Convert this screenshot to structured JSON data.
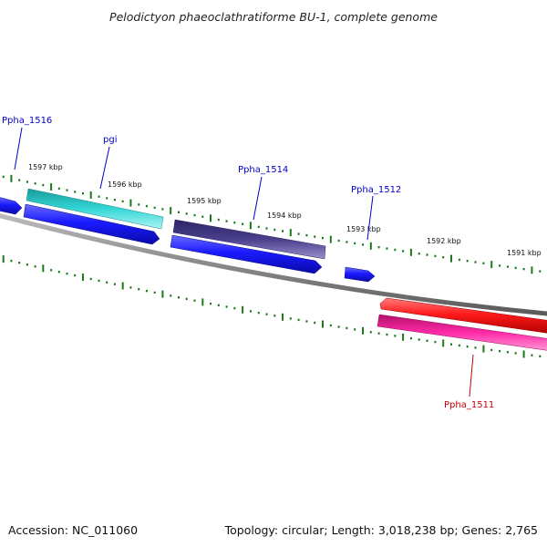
{
  "title": "Pelodictyon phaeoclathratiforme BU-1, complete genome",
  "footer": {
    "accession": "Accession: NC_011060",
    "summary": "Topology: circular; Length: 3,018,238 bp; Genes: 2,765"
  },
  "kbp_labels": [
    "1597 kbp",
    "1596 kbp",
    "1595 kbp",
    "1594 kbp",
    "1593 kbp",
    "1592 kbp",
    "1591 kbp"
  ],
  "gene_labels": [
    {
      "text": "Ppha_1516",
      "color": "#0000cc"
    },
    {
      "text": "pgi",
      "color": "#0000cc"
    },
    {
      "text": "Ppha_1514",
      "color": "#0000cc"
    },
    {
      "text": "Ppha_1512",
      "color": "#0000cc"
    },
    {
      "text": "Ppha_1511",
      "color": "#cc0000"
    }
  ],
  "colors": {
    "backbone": "#8a8a8a",
    "ticks": "#1a7a1a",
    "cds_blue": "#1a1aff",
    "cds_cyan": "#33d6d6",
    "cds_slate": "#4a3f8c",
    "cds_red": "#ff1a1a",
    "cds_magenta": "#ff2aa8"
  }
}
